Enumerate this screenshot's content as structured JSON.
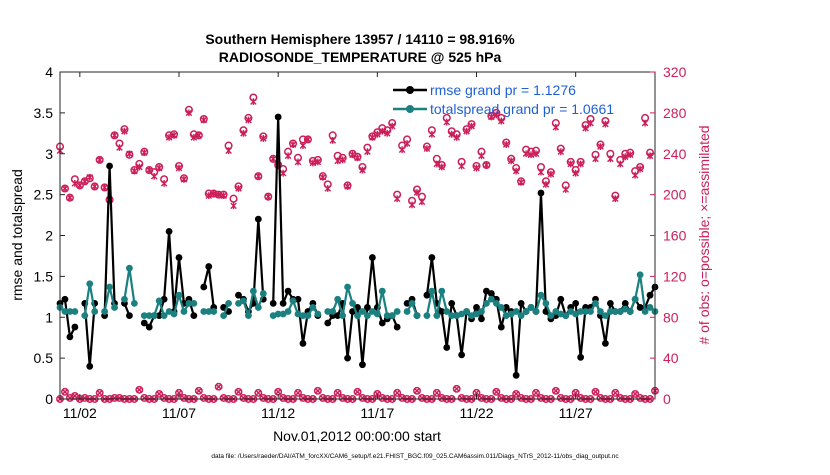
{
  "chart_data": {
    "type": "line",
    "title_line1": "Southern Hemisphere 13957 / 14110 = 98.916%",
    "title_line2": "RADIOSONDE_TEMPERATURE @ 525 hPa",
    "xlabel": "Nov.01,2012 00:00:00 start",
    "ylabel_left": "rmse and totalspread",
    "ylabel_right": "# of obs: o=possible; ×=assimilated",
    "footer": "data file: /Users/raeder/DAI/ATM_forcXX/CAM6_setup/f.e21.FHIST_BGC.f09_025.CAM6assim.011/Diags_NTrS_2012-11/obs_diag_output.nc",
    "xlim": [
      1.0,
      31.0
    ],
    "ylim_left": [
      0,
      4
    ],
    "ylim_right": [
      0,
      320
    ],
    "x_ticks": [
      2,
      7,
      12,
      17,
      22,
      27
    ],
    "x_tick_labels": [
      "11/02",
      "11/07",
      "11/12",
      "11/17",
      "11/22",
      "11/27"
    ],
    "y_ticks_left": [
      0,
      0.5,
      1,
      1.5,
      2,
      2.5,
      3,
      3.5,
      4
    ],
    "y_tick_labels_left": [
      "0",
      "0.5",
      "1",
      "1.5",
      "2",
      "2.5",
      "3",
      "3.5",
      "4"
    ],
    "y_ticks_right": [
      0,
      40,
      80,
      120,
      160,
      200,
      240,
      280,
      320
    ],
    "y_tick_labels_right": [
      "0",
      "40",
      "80",
      "120",
      "160",
      "200",
      "240",
      "280",
      "320"
    ],
    "x": [
      1.0,
      1.25,
      1.5,
      1.75,
      2.0,
      2.25,
      2.5,
      2.75,
      3.0,
      3.25,
      3.5,
      3.75,
      4.0,
      4.25,
      4.5,
      4.75,
      5.0,
      5.25,
      5.5,
      5.75,
      6.0,
      6.25,
      6.5,
      6.75,
      7.0,
      7.25,
      7.5,
      7.75,
      8.0,
      8.25,
      8.5,
      8.75,
      9.0,
      9.25,
      9.5,
      9.75,
      10.0,
      10.25,
      10.5,
      10.75,
      11.0,
      11.25,
      11.5,
      11.75,
      12.0,
      12.25,
      12.5,
      12.75,
      13.0,
      13.25,
      13.5,
      13.75,
      14.0,
      14.25,
      14.5,
      14.75,
      15.0,
      15.25,
      15.5,
      15.75,
      16.0,
      16.25,
      16.5,
      16.75,
      17.0,
      17.25,
      17.5,
      17.75,
      18.0,
      18.25,
      18.5,
      18.75,
      19.0,
      19.25,
      19.5,
      19.75,
      20.0,
      20.25,
      20.5,
      20.75,
      21.0,
      21.25,
      21.5,
      21.75,
      22.0,
      22.25,
      22.5,
      22.75,
      23.0,
      23.25,
      23.5,
      23.75,
      24.0,
      24.25,
      24.5,
      24.75,
      25.0,
      25.25,
      25.5,
      25.75,
      26.0,
      26.25,
      26.5,
      26.75,
      27.0,
      27.25,
      27.5,
      27.75,
      28.0,
      28.25,
      28.5,
      28.75,
      29.0,
      29.25,
      29.5,
      29.75,
      30.0,
      30.25,
      30.5,
      30.75,
      31.0
    ],
    "series": [
      {
        "name": "rmse grand pr = 1.1276",
        "axis": "left",
        "color": "#000000",
        "values": [
          1.17,
          1.22,
          0.76,
          0.88,
          null,
          1.17,
          0.4,
          1.17,
          null,
          1.02,
          2.85,
          1.17,
          null,
          1.17,
          1.02,
          null,
          null,
          0.93,
          0.88,
          1.02,
          1.02,
          1.22,
          2.05,
          1.07,
          1.73,
          1.17,
          1.22,
          1.02,
          null,
          1.37,
          1.62,
          1.12,
          null,
          1.12,
          1.07,
          null,
          1.27,
          1.22,
          1.07,
          1.17,
          2.2,
          1.22,
          null,
          1.17,
          3.45,
          1.17,
          1.32,
          1.22,
          1.22,
          0.68,
          1.07,
          1.17,
          1.02,
          null,
          0.93,
          1.02,
          1.02,
          1.17,
          0.5,
          1.07,
          1.12,
          0.42,
          1.12,
          1.73,
          1.12,
          0.93,
          0.98,
          1.02,
          0.88,
          null,
          1.17,
          1.22,
          1.02,
          null,
          1.27,
          1.73,
          1.17,
          1.07,
          0.63,
          1.17,
          1.02,
          0.54,
          1.07,
          0.98,
          1.12,
          0.98,
          1.32,
          1.29,
          1.22,
          0.88,
          1.12,
          1.07,
          0.29,
          1.17,
          1.07,
          1.12,
          1.07,
          2.52,
          1.07,
          0.98,
          1.02,
          1.22,
          1.02,
          1.12,
          1.17,
          0.51,
          1.12,
          1.12,
          1.22,
          1.02,
          0.68,
          1.17,
          1.07,
          1.07,
          1.17,
          1.07,
          1.22,
          1.12,
          1.12,
          1.27,
          1.37
        ]
      },
      {
        "name": "totalspread grand pr = 1.0661",
        "axis": "left",
        "color": "#1a8080",
        "values": [
          1.12,
          1.07,
          1.07,
          1.07,
          null,
          1.02,
          1.41,
          1.07,
          null,
          1.07,
          1.37,
          1.12,
          null,
          1.22,
          1.6,
          1.17,
          null,
          1.02,
          1.02,
          1.02,
          1.2,
          1.02,
          1.07,
          1.04,
          1.27,
          1.07,
          1.17,
          1.17,
          null,
          1.07,
          1.07,
          1.07,
          null,
          1.02,
          1.17,
          null,
          1.17,
          1.2,
          1.02,
          1.32,
          1.12,
          1.29,
          null,
          1.02,
          1.04,
          1.04,
          1.07,
          1.2,
          1.04,
          1.02,
          1.02,
          1.12,
          1.04,
          null,
          1.07,
          1.07,
          1.22,
          1.02,
          1.37,
          1.17,
          1.02,
          1.07,
          1.02,
          1.07,
          1.04,
          1.32,
          1.02,
          1.02,
          1.07,
          null,
          1.07,
          1.17,
          1.02,
          null,
          1.02,
          1.32,
          1.02,
          1.32,
          1.07,
          1.02,
          1.02,
          1.04,
          1.07,
          1.02,
          1.04,
          1.07,
          1.17,
          1.22,
          1.17,
          1.12,
          1.02,
          1.04,
          1.07,
          1.02,
          1.07,
          1.12,
          1.07,
          1.27,
          1.17,
          1.02,
          1.07,
          1.04,
          1.02,
          1.07,
          1.04,
          1.07,
          1.07,
          1.07,
          1.17,
          1.07,
          1.02,
          1.07,
          1.07,
          1.07,
          1.1,
          1.07,
          1.22,
          1.52,
          1.07,
          1.12,
          1.07
        ]
      }
    ],
    "obs_possible": {
      "name": "obs possible (o)",
      "axis": "right",
      "color": "#cc1f5a",
      "values": [
        247,
        206,
        197,
        215,
        209,
        213,
        216,
        208,
        234,
        207,
        195,
        258,
        250,
        264,
        239,
        224,
        230,
        242,
        224,
        222,
        227,
        215,
        258,
        259,
        228,
        216,
        283,
        259,
        258,
        274,
        201,
        201,
        200,
        200,
        248,
        196,
        208,
        263,
        275,
        295,
        218,
        257,
        198,
        235,
        229,
        225,
        242,
        250,
        236,
        254,
        254,
        233,
        234,
        218,
        210,
        258,
        238,
        236,
        209,
        240,
        237,
        227,
        246,
        257,
        261,
        265,
        263,
        270,
        200,
        248,
        254,
        194,
        205,
        198,
        247,
        263,
        235,
        229,
        275,
        262,
        259,
        232,
        264,
        269,
        228,
        242,
        229,
        277,
        280,
        275,
        251,
        235,
        226,
        213,
        244,
        242,
        243,
        227,
        213,
        222,
        270,
        245,
        209,
        232,
        224,
        232,
        268,
        274,
        239,
        249,
        272,
        240,
        199,
        234,
        240,
        241,
        223,
        227,
        275,
        241
      ]
    },
    "obs_assimilated": {
      "name": "obs assimilated (×)",
      "axis": "right",
      "color": "#cc1f5a",
      "values": [
        243,
        206,
        197,
        211,
        209,
        213,
        217,
        208,
        234,
        207,
        195,
        258,
        246,
        262,
        240,
        223,
        227,
        241,
        224,
        218,
        226,
        211,
        256,
        258,
        226,
        215,
        280,
        256,
        258,
        273,
        199,
        201,
        200,
        199,
        243,
        189,
        206,
        260,
        273,
        291,
        218,
        255,
        198,
        235,
        229,
        221,
        238,
        249,
        232,
        248,
        254,
        231,
        232,
        217,
        206,
        253,
        233,
        234,
        208,
        239,
        236,
        224,
        242,
        256,
        259,
        262,
        260,
        267,
        196,
        244,
        250,
        190,
        202,
        193,
        245,
        259,
        230,
        227,
        271,
        259,
        256,
        228,
        262,
        267,
        226,
        238,
        229,
        276,
        278,
        272,
        249,
        233,
        223,
        212,
        240,
        239,
        240,
        222,
        210,
        220,
        266,
        242,
        205,
        230,
        221,
        230,
        265,
        270,
        235,
        247,
        269,
        235,
        196,
        230,
        237,
        239,
        219,
        225,
        270,
        238
      ]
    },
    "obs_bottom": [
      0,
      7,
      1,
      3,
      0,
      1,
      0,
      0,
      6,
      0,
      0,
      1,
      1,
      0,
      0,
      0,
      9,
      1,
      0,
      0,
      5,
      1,
      0,
      0,
      6,
      1,
      0,
      0,
      8,
      1,
      0,
      0,
      12,
      1,
      0,
      0,
      7,
      1,
      0,
      0,
      6,
      1,
      0,
      0,
      7,
      1,
      0,
      0,
      6,
      1,
      0,
      0,
      8,
      1,
      0,
      0,
      6,
      1,
      0,
      0,
      7,
      1,
      0,
      0,
      5,
      1,
      0,
      0,
      6,
      1,
      0,
      0,
      8,
      1,
      0,
      0,
      6,
      1,
      0,
      0,
      10,
      1,
      0,
      0,
      6,
      1,
      0,
      0,
      7,
      1,
      0,
      0,
      5,
      1,
      0,
      0,
      6,
      1,
      0,
      0,
      8,
      1,
      0,
      0,
      6,
      1,
      0,
      0,
      7,
      1,
      0,
      0,
      6,
      1,
      0,
      0,
      5,
      1,
      0,
      0,
      8
    ],
    "legend": {
      "location": "top-right",
      "entries": [
        "rmse grand pr = 1.1276",
        "totalspread grand pr = 1.0661"
      ]
    },
    "colors": {
      "rmse": "#000000",
      "totalspread": "#1a8080",
      "obs": "#cc1f5a",
      "legend_text": "#1f5fd6"
    }
  }
}
